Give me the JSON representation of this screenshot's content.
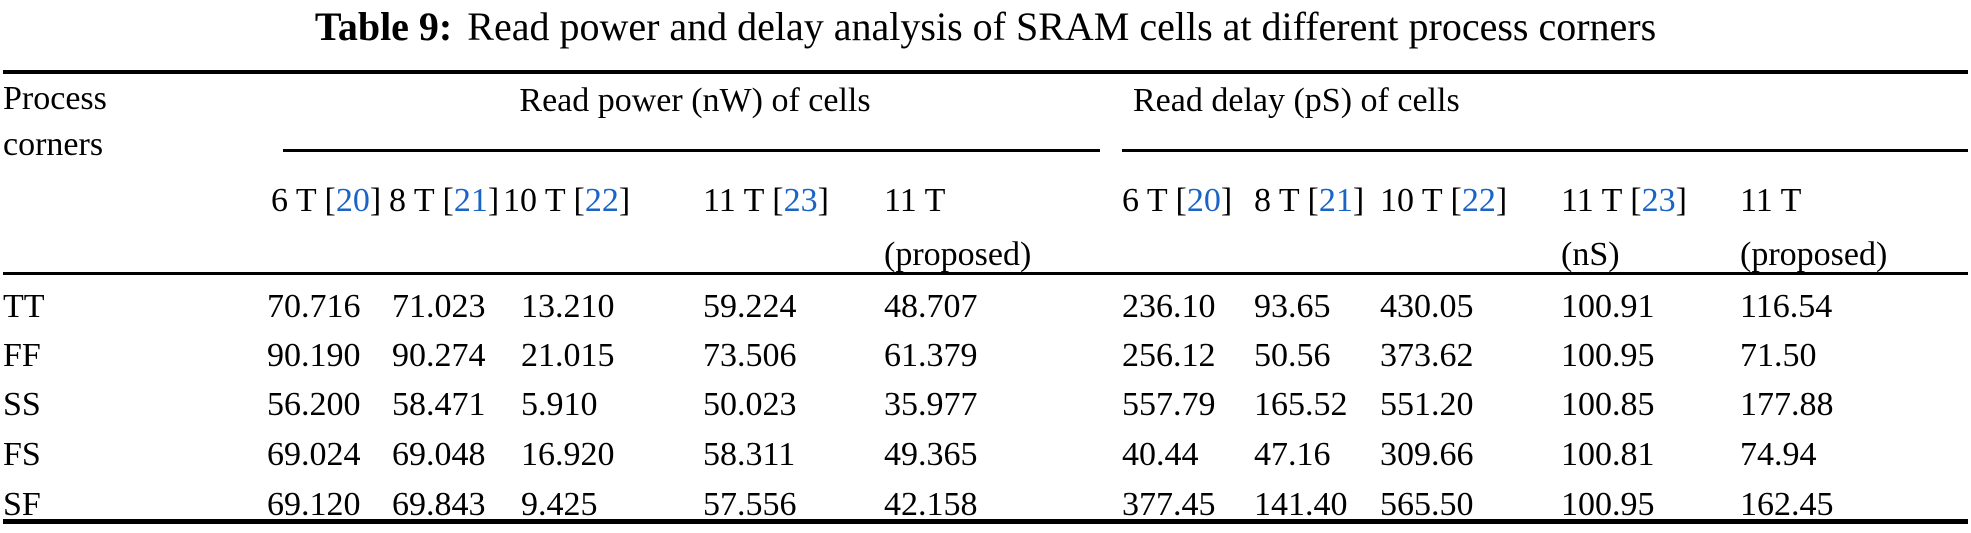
{
  "colors": {
    "citation": "#1a64c8",
    "text": "#000000",
    "background": "#ffffff"
  },
  "title": {
    "label": "Table 9:",
    "text": "Read power and delay analysis of SRAM cells at different process corners"
  },
  "table": {
    "row_header": {
      "line1": "Process",
      "line2": "corners"
    },
    "groups": [
      {
        "label": "Read power (nW) of cells"
      },
      {
        "label": "Read delay (pS) of cells"
      }
    ],
    "columns": [
      {
        "prefix": "6 T [",
        "cite": "20",
        "suffix": "]",
        "line2": ""
      },
      {
        "prefix": "8 T [",
        "cite": "21",
        "suffix": "]",
        "line2": ""
      },
      {
        "prefix": "10 T [",
        "cite": "22",
        "suffix": "]",
        "line2": ""
      },
      {
        "prefix": "11 T [",
        "cite": "23",
        "suffix": "]",
        "line2": ""
      },
      {
        "prefix": "11 T",
        "cite": "",
        "suffix": "",
        "line2": "(proposed)"
      },
      {
        "prefix": "6 T [",
        "cite": "20",
        "suffix": "]",
        "line2": ""
      },
      {
        "prefix": "8 T [",
        "cite": "21",
        "suffix": "]",
        "line2": ""
      },
      {
        "prefix": "10 T [",
        "cite": "22",
        "suffix": "]",
        "line2": ""
      },
      {
        "prefix": "11 T [",
        "cite": "23",
        "suffix": "]",
        "line2": "(nS)"
      },
      {
        "prefix": "11 T",
        "cite": "",
        "suffix": "",
        "line2": "(proposed)"
      }
    ],
    "rows": [
      {
        "label": "TT",
        "values": [
          "70.716",
          "71.023",
          "13.210",
          "59.224",
          "48.707",
          "236.10",
          "93.65",
          "430.05",
          "100.91",
          "116.54"
        ]
      },
      {
        "label": "FF",
        "values": [
          "90.190",
          "90.274",
          "21.015",
          "73.506",
          "61.379",
          "256.12",
          "50.56",
          "373.62",
          "100.95",
          "71.50"
        ]
      },
      {
        "label": "SS",
        "values": [
          "56.200",
          "58.471",
          "5.910",
          "50.023",
          "35.977",
          "557.79",
          "165.52",
          "551.20",
          "100.85",
          "177.88"
        ]
      },
      {
        "label": "FS",
        "values": [
          "69.024",
          "69.048",
          "16.920",
          "58.311",
          "49.365",
          "40.44",
          "47.16",
          "309.66",
          "100.81",
          "74.94"
        ]
      },
      {
        "label": "SF",
        "values": [
          "69.120",
          "69.843",
          "9.425",
          "57.556",
          "42.158",
          "377.45",
          "141.40",
          "565.50",
          "100.95",
          "162.45"
        ]
      }
    ]
  }
}
